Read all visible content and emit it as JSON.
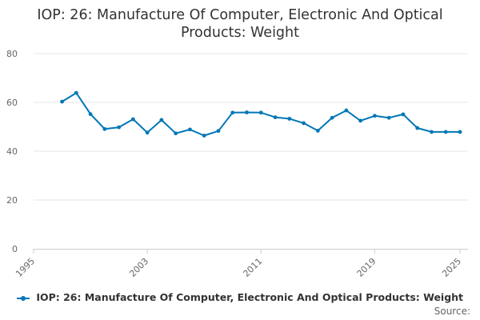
{
  "chart_data": {
    "type": "line",
    "title_lines": [
      "IOP: 26: Manufacture Of Computer, Electronic And Optical",
      "Products: Weight"
    ],
    "xlabel": "",
    "ylabel": "",
    "xlim": [
      1995,
      2025
    ],
    "ylim": [
      0,
      80
    ],
    "y_ticks": [
      0,
      20,
      40,
      60,
      80
    ],
    "x_ticks": [
      1995,
      2003,
      2011,
      2019,
      2025
    ],
    "grid": true,
    "legend": "bottom-center",
    "series": [
      {
        "name": "IOP: 26: Manufacture Of Computer, Electronic And Optical Products: Weight",
        "color": "#0077B6",
        "x": [
          1997,
          1998,
          1999,
          2000,
          2001,
          2002,
          2003,
          2004,
          2005,
          2006,
          2007,
          2008,
          2009,
          2010,
          2011,
          2012,
          2013,
          2014,
          2015,
          2016,
          2017,
          2018,
          2019,
          2020,
          2021,
          2022,
          2023,
          2024,
          2025
        ],
        "values": [
          60.3,
          63.9,
          55.2,
          49.1,
          49.8,
          53.1,
          47.6,
          52.8,
          47.3,
          48.9,
          46.4,
          48.3,
          55.8,
          55.9,
          55.8,
          53.9,
          53.3,
          51.5,
          48.4,
          53.7,
          56.7,
          52.5,
          54.5,
          53.7,
          55.1,
          49.5,
          47.9,
          47.9,
          47.9
        ]
      }
    ]
  },
  "legend_label": "IOP: 26: Manufacture Of Computer, Electronic And Optical Products: Weight",
  "source_label": "Source:"
}
